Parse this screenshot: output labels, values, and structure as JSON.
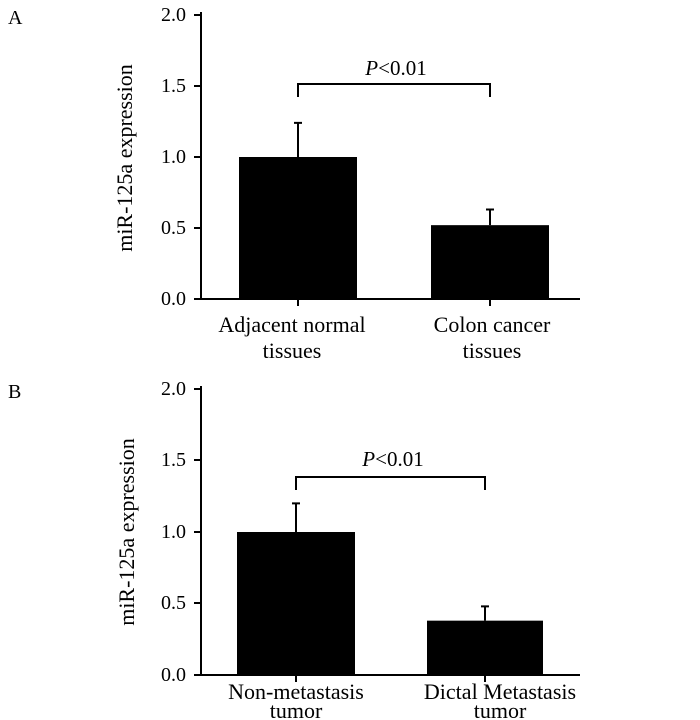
{
  "chart_data": [
    {
      "panel": "A",
      "type": "bar",
      "ylabel": "miR-125a expression",
      "ylim": [
        0,
        2.0
      ],
      "yticks": [
        "0.0",
        "0.5",
        "1.0",
        "1.5",
        "2.0"
      ],
      "categories": [
        [
          "Adjacent normal",
          "tissues"
        ],
        [
          "Colon cancer",
          "tissues"
        ]
      ],
      "values": [
        1.0,
        0.52
      ],
      "errors": [
        0.24,
        0.11
      ],
      "significance": {
        "italic": "P",
        "text": "<0.01"
      },
      "bar_color": "#000000"
    },
    {
      "panel": "B",
      "type": "bar",
      "ylabel": "miR-125a expression",
      "ylim": [
        0,
        2.0
      ],
      "yticks": [
        "0.0",
        "0.5",
        "1.0",
        "1.5",
        "2.0"
      ],
      "categories": [
        [
          "Non-metastasis",
          "tumor"
        ],
        [
          "Dictal Metastasis",
          "tumor"
        ]
      ],
      "values": [
        1.0,
        0.38
      ],
      "errors": [
        0.2,
        0.1
      ],
      "significance": {
        "italic": "P",
        "text": "<0.01"
      },
      "bar_color": "#000000"
    }
  ]
}
